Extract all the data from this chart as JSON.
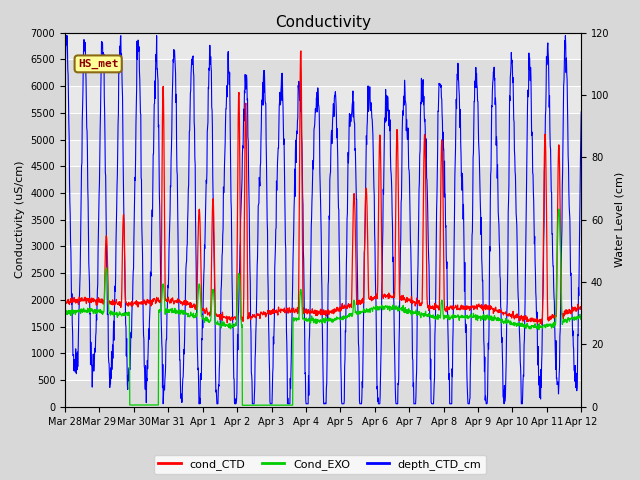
{
  "title": "Conductivity",
  "ylabel_left": "Conductivity (uS/cm)",
  "ylabel_right": "Water Level (cm)",
  "ylim_left": [
    0,
    7000
  ],
  "ylim_right": [
    0,
    120
  ],
  "yticks_left": [
    0,
    500,
    1000,
    1500,
    2000,
    2500,
    3000,
    3500,
    4000,
    4500,
    5000,
    5500,
    6000,
    6500,
    7000
  ],
  "yticks_right": [
    0,
    20,
    40,
    60,
    80,
    100,
    120
  ],
  "fig_bg_color": "#d8d8d8",
  "plot_bg_color": "#e8e8e8",
  "grid_color": "#c8c8c8",
  "line_color_ctd": "red",
  "line_color_exo": "#00cc00",
  "line_color_depth": "blue",
  "legend_labels": [
    "cond_CTD",
    "Cond_EXO",
    "depth_CTD_cm"
  ],
  "annotation_text": "HS_met",
  "annotation_face": "#ffff99",
  "annotation_edge": "#8b6914",
  "tick_labels": [
    "Mar 28",
    "Mar 29",
    "Mar 30",
    "Mar 31",
    "Apr 1",
    "Apr 2",
    "Apr 3",
    "Apr 4",
    "Apr 5",
    "Apr 6",
    "Apr 7",
    "Apr 8",
    "Apr 9",
    "Apr 10",
    "Apr 11",
    "Apr 12"
  ],
  "title_fontsize": 11,
  "label_fontsize": 8,
  "tick_fontsize": 7,
  "legend_fontsize": 8,
  "n_points": 1500,
  "days": 15
}
